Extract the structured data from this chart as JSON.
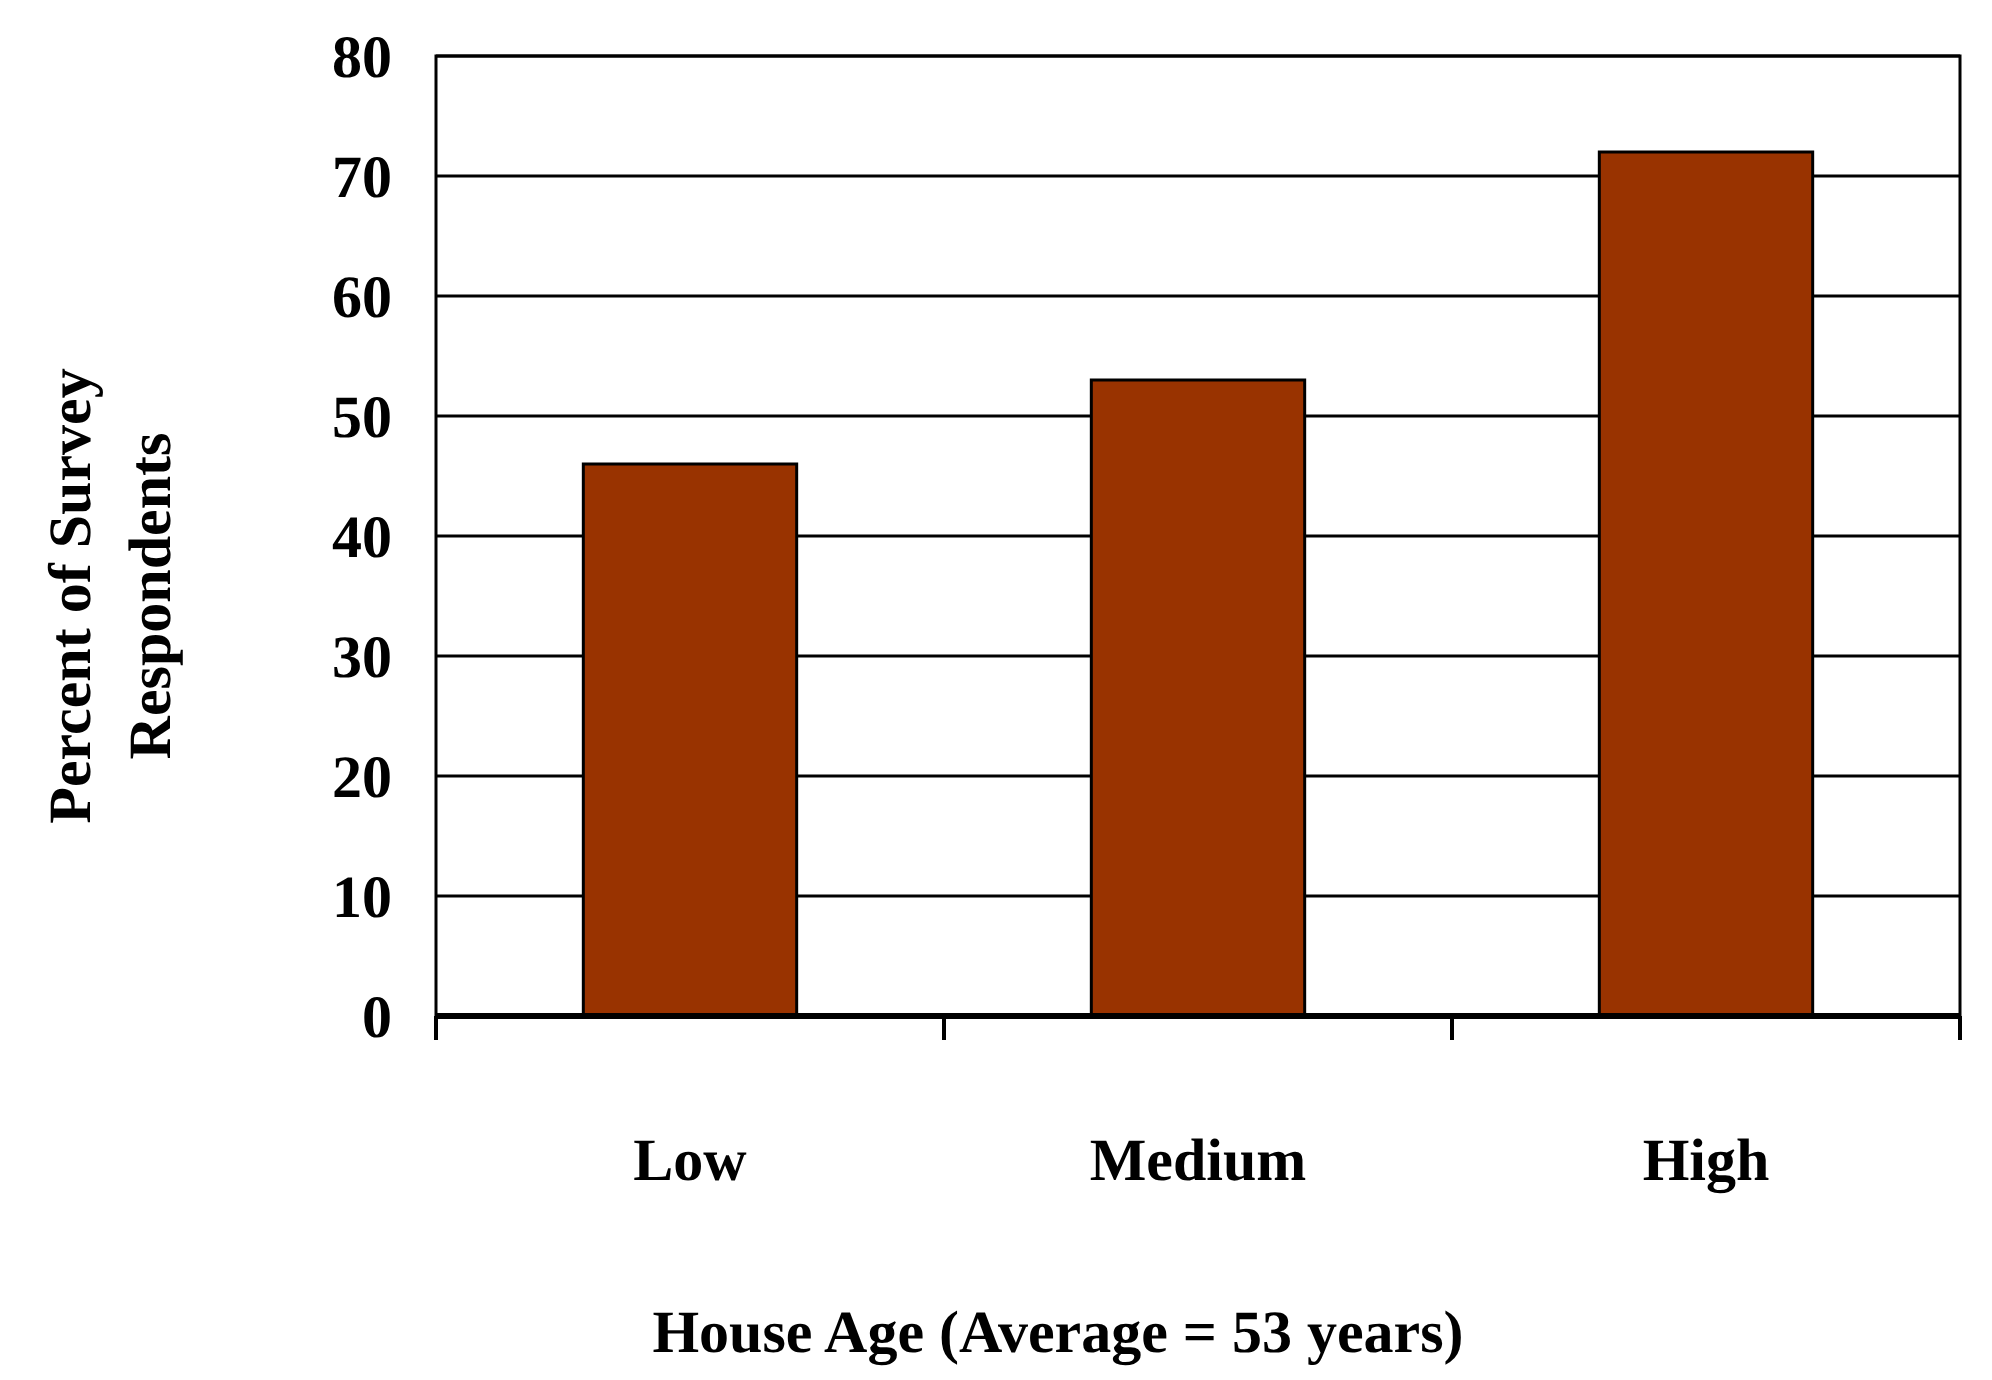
{
  "chart_data": {
    "type": "bar",
    "xlabel": "House Age (Average = 53 years)",
    "ylabel": "Percent of Survey Respondents",
    "categories": [
      "Low",
      "Medium",
      "High"
    ],
    "values": [
      46,
      53,
      72
    ],
    "color": "#993300",
    "ylim": [
      0,
      80
    ],
    "yticks": [
      0,
      10,
      20,
      30,
      40,
      50,
      60,
      70,
      80
    ],
    "grid": "y"
  }
}
